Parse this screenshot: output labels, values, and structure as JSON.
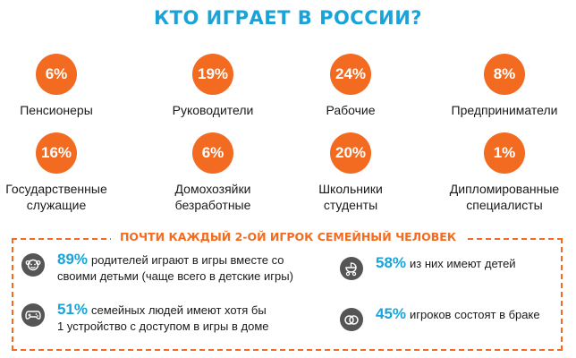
{
  "title": "КТО ИГРАЕТ В РОССИИ?",
  "stats_row1": [
    {
      "value": "6%",
      "label_lines": [
        "Пенсионеры",
        ""
      ]
    },
    {
      "value": "19%",
      "label_lines": [
        "Руководители",
        ""
      ]
    },
    {
      "value": "24%",
      "label_lines": [
        "Рабочие",
        ""
      ]
    },
    {
      "value": "8%",
      "label_lines": [
        "Предприниматели",
        ""
      ]
    }
  ],
  "stats_row2": [
    {
      "value": "16%",
      "label_lines": [
        "Государственные",
        "служащие"
      ]
    },
    {
      "value": "6%",
      "label_lines": [
        "Домохозяйки",
        "безработные"
      ]
    },
    {
      "value": "20%",
      "label_lines": [
        "Школьники",
        "студенты"
      ]
    },
    {
      "value": "1%",
      "label_lines": [
        "Дипломированные",
        "специалисты"
      ]
    }
  ],
  "family": {
    "heading": "ПОЧТИ КАЖДЫЙ 2-ОЙ ИГРОК СЕМЕЙНЫЙ ЧЕЛОВЕК",
    "facts": [
      {
        "value": "89%",
        "line1": "родителей играют в игры вместе со",
        "line2": "своими детьми (чаще всего в детские игры)",
        "icon": "kid-face-icon"
      },
      {
        "value": "58%",
        "line1": "из них имеют детей",
        "line2": "",
        "icon": "baby-stroller-icon"
      },
      {
        "value": "51%",
        "line1": "семейных людей имеют хотя бы",
        "line2": "1 устройство с доступом в игры в доме",
        "icon": "gamepad-icon"
      },
      {
        "value": "45%",
        "line1": "игроков состоят в браке",
        "line2": "",
        "icon": "wedding-rings-icon"
      }
    ]
  },
  "colors": {
    "accent_orange": "#f26b21",
    "accent_blue": "#1aa3d9",
    "icon_gray": "#555555"
  }
}
